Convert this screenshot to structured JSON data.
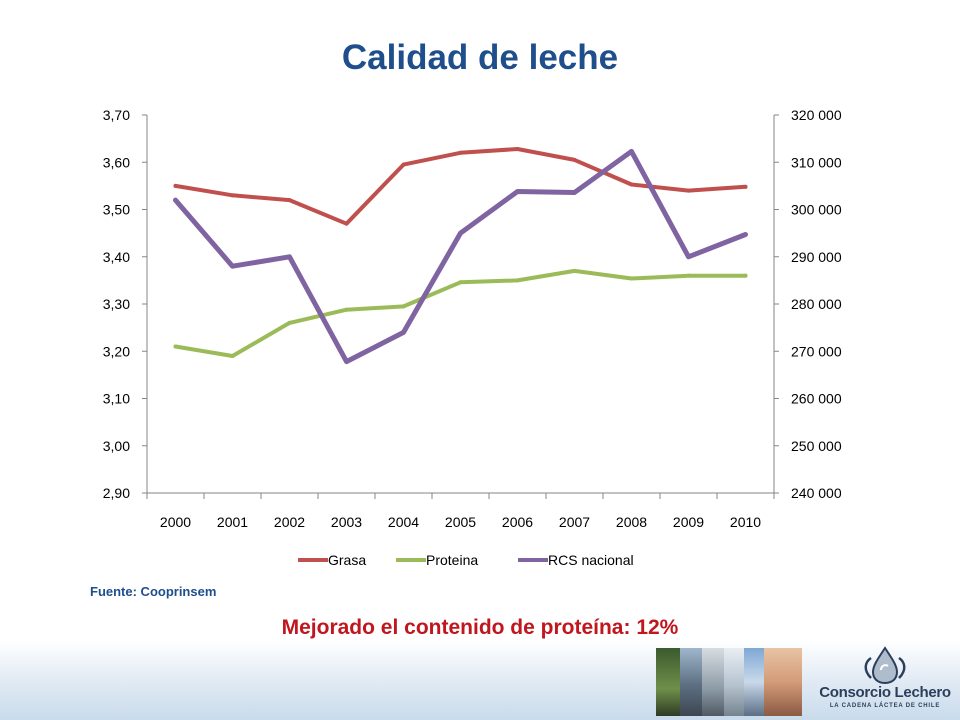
{
  "title": "Calidad de leche",
  "source_text": "Fuente: Cooprinsem",
  "note_text": "Mejorado el contenido de proteína: 12%",
  "logo": {
    "name": "Consorcio Lechero",
    "tagline": "LA CADENA LÁCTEA DE CHILE",
    "icon": "drop-splash-icon"
  },
  "colors": {
    "title": "#1f4e8c",
    "note": "#c0161d",
    "grasa": "#c0504d",
    "proteina": "#9bbb59",
    "rcs": "#8064a2"
  },
  "chart_data": {
    "type": "line",
    "title": "",
    "x": [
      "2000",
      "2001",
      "2002",
      "2003",
      "2004",
      "2005",
      "2006",
      "2007",
      "2008",
      "2009",
      "2010"
    ],
    "y_left": {
      "ylim": [
        2.9,
        3.7
      ],
      "ticks": [
        2.9,
        3.0,
        3.1,
        3.2,
        3.3,
        3.4,
        3.5,
        3.6,
        3.7
      ],
      "tick_labels": [
        "2,90",
        "3,00",
        "3,10",
        "3,20",
        "3,30",
        "3,40",
        "3,50",
        "3,60",
        "3,70"
      ]
    },
    "y_right": {
      "ylim": [
        240000,
        320000
      ],
      "ticks": [
        240000,
        250000,
        260000,
        270000,
        280000,
        290000,
        300000,
        310000,
        320000
      ],
      "tick_labels": [
        "240 000",
        "250 000",
        "260 000",
        "270 000",
        "280 000",
        "290 000",
        "300 000",
        "310 000",
        "320 000"
      ]
    },
    "series": [
      {
        "name": "Grasa",
        "axis": "left",
        "color": "#c0504d",
        "values": [
          3.55,
          3.53,
          3.52,
          3.47,
          3.595,
          3.62,
          3.628,
          3.605,
          3.553,
          3.54,
          3.548
        ]
      },
      {
        "name": "Proteina",
        "axis": "left",
        "color": "#9bbb59",
        "values": [
          3.21,
          3.19,
          3.26,
          3.288,
          3.295,
          3.346,
          3.35,
          3.37,
          3.354,
          3.36,
          3.36
        ]
      },
      {
        "name": "RCS nacional",
        "axis": "right",
        "color": "#8064a2",
        "values": [
          302000,
          288000,
          290000,
          267800,
          274000,
          295000,
          303800,
          303600,
          312300,
          290000,
          294700
        ]
      }
    ],
    "legend_position": "bottom",
    "grid": false
  }
}
